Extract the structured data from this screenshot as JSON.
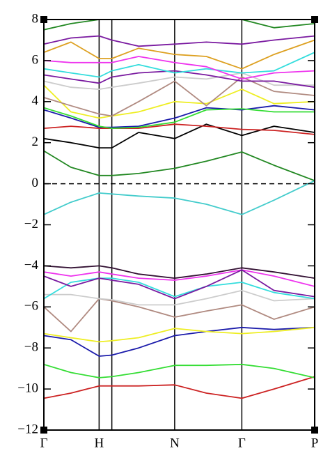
{
  "chart_data": {
    "type": "line",
    "x": [
      0,
      0.1,
      0.204,
      0.251,
      0.35,
      0.483,
      0.6,
      0.731,
      0.85,
      1
    ],
    "xlim": [
      0,
      1
    ],
    "xticks": [
      {
        "value": 0,
        "label": "Γ"
      },
      {
        "value": 0.204,
        "label": "H"
      },
      {
        "value": 0.251,
        "label": null
      },
      {
        "value": 0.483,
        "label": "N"
      },
      {
        "value": 0.731,
        "label": "Γ"
      },
      {
        "value": 1,
        "label": "P"
      }
    ],
    "ylim": [
      -12,
      8
    ],
    "yticks": [
      {
        "value": -12,
        "label": "−12"
      },
      {
        "value": -10,
        "label": "−10"
      },
      {
        "value": -8,
        "label": "−8"
      },
      {
        "value": -6,
        "label": "−6"
      },
      {
        "value": -4,
        "label": "−4"
      },
      {
        "value": -2,
        "label": "−2"
      },
      0,
      2,
      4,
      6,
      8
    ],
    "reference_line": 0,
    "series": [
      {
        "color": "#cc2222",
        "values": [
          -10.45,
          -10.2,
          -9.85,
          -9.85,
          -9.85,
          -9.8,
          -10.2,
          -10.45,
          -10.0,
          -9.4
        ]
      },
      {
        "color": "#33dd33",
        "values": [
          -8.8,
          -9.2,
          -9.45,
          -9.4,
          -9.2,
          -8.85,
          -8.85,
          -8.8,
          -9.0,
          -9.45
        ]
      },
      {
        "color": "#1a1aaa",
        "values": [
          -7.4,
          -7.6,
          -8.4,
          -8.35,
          -8.0,
          -7.4,
          -7.2,
          -7.0,
          -7.1,
          -7.0
        ]
      },
      {
        "color": "#eeee22",
        "values": [
          -7.3,
          -7.5,
          -7.7,
          -7.65,
          -7.5,
          -7.05,
          -7.2,
          -7.3,
          -7.2,
          -7.0
        ]
      },
      {
        "color": "#b08a80",
        "values": [
          -6.0,
          -7.2,
          -5.6,
          -5.7,
          -6.0,
          -6.5,
          -6.2,
          -5.9,
          -6.6,
          -6.0
        ]
      },
      {
        "color": "#cccccc",
        "values": [
          -5.4,
          -5.4,
          -5.6,
          -5.65,
          -5.9,
          -5.9,
          -5.6,
          -5.2,
          -5.7,
          -5.6
        ]
      },
      {
        "color": "#33dddd",
        "values": [
          -5.6,
          -4.8,
          -4.6,
          -4.6,
          -4.8,
          -5.5,
          -5.0,
          -4.8,
          -5.3,
          -5.6
        ]
      },
      {
        "color": "#ee33ee",
        "values": [
          -4.3,
          -4.5,
          -4.3,
          -4.4,
          -4.6,
          -4.7,
          -4.5,
          -4.2,
          -4.5,
          -5.0
        ]
      },
      {
        "color": "#7a1aa0",
        "values": [
          -4.5,
          -5.0,
          -4.6,
          -4.7,
          -4.9,
          -5.6,
          -5.0,
          -4.2,
          -5.2,
          -5.5
        ]
      },
      {
        "color": "#331133",
        "values": [
          -4.0,
          -4.1,
          -4.0,
          -4.1,
          -4.4,
          -4.6,
          -4.4,
          -4.1,
          -4.3,
          -4.6
        ]
      },
      {
        "color": "#44cccc",
        "values": [
          -1.5,
          -0.9,
          -0.45,
          -0.5,
          -0.6,
          -0.7,
          -1.0,
          -1.5,
          -0.8,
          0.15
        ]
      },
      {
        "color": "#228822",
        "values": [
          1.6,
          0.8,
          0.4,
          0.4,
          0.5,
          0.75,
          1.1,
          1.55,
          0.9,
          0.15
        ]
      },
      {
        "color": "#000000",
        "values": [
          2.2,
          2.0,
          1.75,
          1.75,
          2.5,
          2.2,
          2.9,
          2.35,
          2.8,
          2.5
        ]
      },
      {
        "color": "#cc2222",
        "values": [
          2.7,
          2.8,
          2.7,
          2.7,
          2.7,
          2.9,
          2.8,
          2.65,
          2.6,
          2.4
        ]
      },
      {
        "color": "#1a1aaa",
        "values": [
          3.6,
          3.2,
          2.75,
          2.75,
          2.8,
          3.2,
          3.7,
          3.6,
          3.8,
          3.6
        ]
      },
      {
        "color": "#33dd33",
        "values": [
          3.7,
          3.3,
          2.8,
          2.7,
          2.75,
          3.0,
          3.6,
          3.65,
          3.5,
          3.5
        ]
      },
      {
        "color": "#eeee22",
        "values": [
          4.8,
          3.5,
          3.2,
          3.3,
          3.5,
          4.0,
          3.9,
          4.6,
          3.9,
          4.0
        ]
      },
      {
        "color": "#b08a80",
        "values": [
          4.2,
          3.8,
          3.4,
          3.3,
          4.0,
          5.0,
          3.8,
          5.2,
          4.5,
          4.3
        ]
      },
      {
        "color": "#cccccc",
        "values": [
          5.0,
          4.7,
          4.6,
          4.7,
          4.9,
          5.2,
          5.1,
          5.4,
          4.8,
          4.8
        ]
      },
      {
        "color": "#7a1aa0",
        "values": [
          5.3,
          5.1,
          4.9,
          5.2,
          5.4,
          5.5,
          5.3,
          5.0,
          5.0,
          4.7
        ]
      },
      {
        "color": "#33dddd",
        "values": [
          5.6,
          5.4,
          5.2,
          5.5,
          5.8,
          5.4,
          5.6,
          5.4,
          5.5,
          6.4
        ]
      },
      {
        "color": "#ee33ee",
        "values": [
          6.0,
          5.9,
          5.9,
          5.9,
          6.2,
          5.9,
          5.7,
          5.1,
          5.4,
          5.5
        ]
      },
      {
        "color": "#dda020",
        "values": [
          6.4,
          6.9,
          6.1,
          6.1,
          6.6,
          6.3,
          6.2,
          5.6,
          6.3,
          7.0
        ]
      },
      {
        "color": "#7a1aa0",
        "values": [
          6.8,
          7.1,
          7.2,
          7.0,
          6.7,
          6.8,
          6.9,
          6.8,
          7.0,
          7.2
        ]
      },
      {
        "color": "#228822",
        "values": [
          7.5,
          7.8,
          8.0,
          8.0,
          8.0,
          8.0,
          8.0,
          8.0,
          7.6,
          7.8
        ]
      }
    ]
  }
}
